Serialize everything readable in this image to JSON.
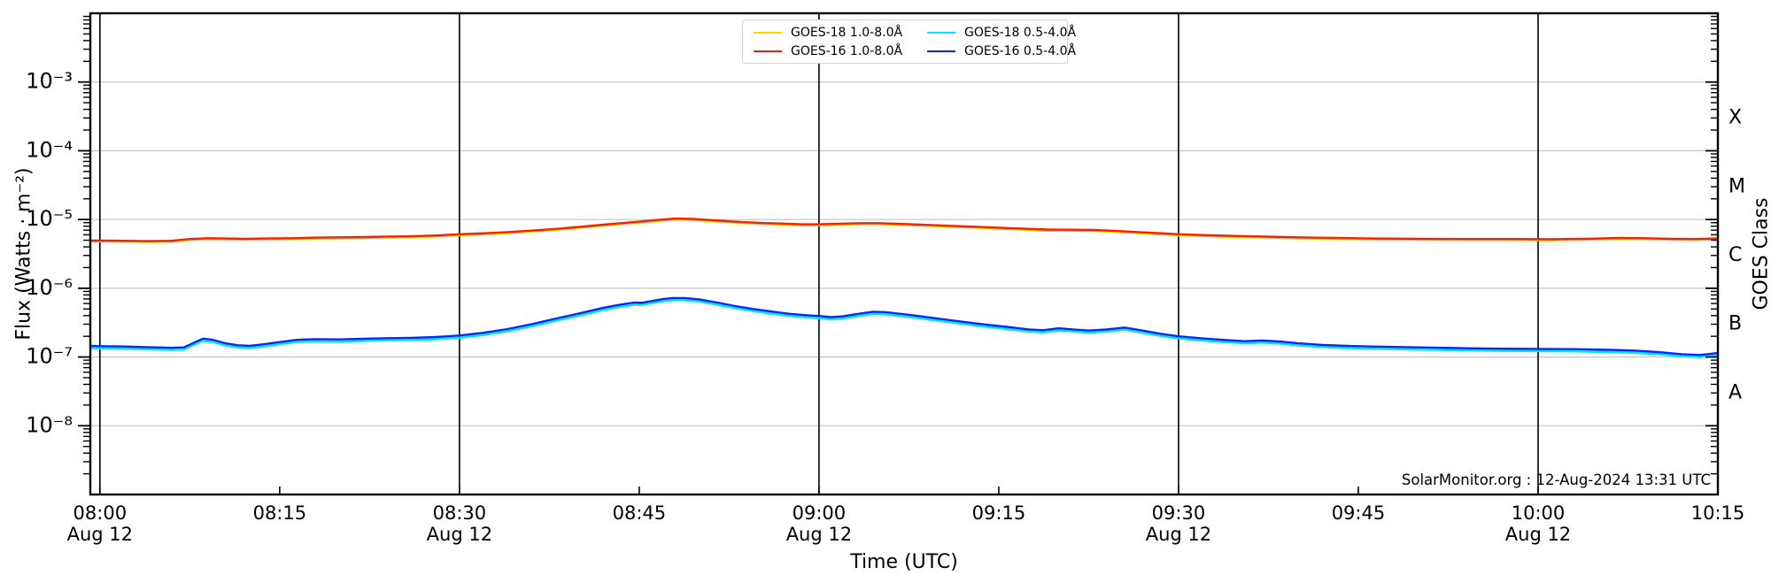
{
  "figure": {
    "attribution": "SolarMonitor.org : 12-Aug-2024 13:31 UTC",
    "background": "#ffffff"
  },
  "chart_data": {
    "type": "line",
    "title": "",
    "xlabel": "Time (UTC)",
    "ylabel": "Flux (Watts · m⁻²)",
    "y2label": "GOES Class",
    "x_unit": "minutes after 08:00 UTC, 12-Aug-2024",
    "x_range_min": [
      -0.8,
      135
    ],
    "y_scale": "log",
    "y_log_range": [
      -9,
      -2
    ],
    "grid": {
      "horizontal_exponents": [
        -3,
        -4,
        -5,
        -6,
        -7,
        -8
      ],
      "gridline_color": "#c8c8c8",
      "major_vline_color": "#000000"
    },
    "y_ticks": [
      {
        "exp": -3,
        "label": "10⁻³"
      },
      {
        "exp": -4,
        "label": "10⁻⁴"
      },
      {
        "exp": -5,
        "label": "10⁻⁵"
      },
      {
        "exp": -6,
        "label": "10⁻⁶"
      },
      {
        "exp": -7,
        "label": "10⁻⁷"
      },
      {
        "exp": -8,
        "label": "10⁻⁸"
      }
    ],
    "x_ticks": [
      {
        "t": 0,
        "label": "08:00",
        "date": "Aug 12",
        "major": true
      },
      {
        "t": 15,
        "label": "08:15"
      },
      {
        "t": 30,
        "label": "08:30",
        "date": "Aug 12",
        "major": true
      },
      {
        "t": 45,
        "label": "08:45"
      },
      {
        "t": 60,
        "label": "09:00",
        "date": "Aug 12",
        "major": true
      },
      {
        "t": 75,
        "label": "09:15"
      },
      {
        "t": 90,
        "label": "09:30",
        "date": "Aug 12",
        "major": true
      },
      {
        "t": 105,
        "label": "09:45"
      },
      {
        "t": 120,
        "label": "10:00",
        "date": "Aug 12",
        "major": true
      },
      {
        "t": 135,
        "label": "10:15"
      }
    ],
    "goes_class_ticks": [
      {
        "label": "X",
        "log_center": -3.5
      },
      {
        "label": "M",
        "log_center": -4.5
      },
      {
        "label": "C",
        "log_center": -5.5
      },
      {
        "label": "B",
        "log_center": -6.5
      },
      {
        "label": "A",
        "log_center": -7.5
      }
    ],
    "legend": {
      "position": "top-center",
      "order": [
        "GOES-18 1.0-8.0Å",
        "GOES-18 0.5-4.0Å",
        "GOES-16 1.0-8.0Å",
        "GOES-16 0.5-4.0Å"
      ]
    },
    "series": [
      {
        "name": "GOES-18 1.0-8.0Å",
        "color": "#ffd400",
        "note": "almost entirely hidden behind GOES-16 1.0-8.0Å",
        "scale_of": "GOES-16 1.0-8.0Å",
        "factor": 0.97
      },
      {
        "name": "GOES-16 1.0-8.0Å",
        "color": "#ff1c00",
        "points": [
          [
            -0.8,
            4.95e-06
          ],
          [
            0,
            4.95e-06
          ],
          [
            2,
            4.9e-06
          ],
          [
            4,
            4.85e-06
          ],
          [
            6,
            4.9e-06
          ],
          [
            7.5,
            5.2e-06
          ],
          [
            9,
            5.35e-06
          ],
          [
            10.5,
            5.3e-06
          ],
          [
            12,
            5.25e-06
          ],
          [
            14,
            5.3e-06
          ],
          [
            16,
            5.35e-06
          ],
          [
            18,
            5.45e-06
          ],
          [
            20,
            5.5e-06
          ],
          [
            22,
            5.55e-06
          ],
          [
            24,
            5.65e-06
          ],
          [
            26,
            5.7e-06
          ],
          [
            28,
            5.85e-06
          ],
          [
            30,
            6.1e-06
          ],
          [
            32,
            6.3e-06
          ],
          [
            34,
            6.55e-06
          ],
          [
            36,
            6.9e-06
          ],
          [
            38,
            7.3e-06
          ],
          [
            40,
            7.8e-06
          ],
          [
            42,
            8.4e-06
          ],
          [
            44,
            9e-06
          ],
          [
            45.5,
            9.5e-06
          ],
          [
            47,
            1e-05
          ],
          [
            48,
            1.03e-05
          ],
          [
            49.5,
            1.02e-05
          ],
          [
            51,
            9.8e-06
          ],
          [
            53,
            9.3e-06
          ],
          [
            55,
            8.95e-06
          ],
          [
            57,
            8.7e-06
          ],
          [
            58.5,
            8.5e-06
          ],
          [
            60,
            8.5e-06
          ],
          [
            62,
            8.7e-06
          ],
          [
            63.5,
            8.85e-06
          ],
          [
            65,
            8.85e-06
          ],
          [
            67,
            8.6e-06
          ],
          [
            69,
            8.35e-06
          ],
          [
            71,
            8.1e-06
          ],
          [
            73,
            7.85e-06
          ],
          [
            75,
            7.6e-06
          ],
          [
            77,
            7.35e-06
          ],
          [
            79,
            7.15e-06
          ],
          [
            81,
            7.1e-06
          ],
          [
            83,
            7.05e-06
          ],
          [
            85,
            6.8e-06
          ],
          [
            87,
            6.5e-06
          ],
          [
            89,
            6.25e-06
          ],
          [
            90,
            6.1e-06
          ],
          [
            92,
            5.95e-06
          ],
          [
            94,
            5.8e-06
          ],
          [
            96,
            5.7e-06
          ],
          [
            98,
            5.6e-06
          ],
          [
            100,
            5.5e-06
          ],
          [
            103,
            5.4e-06
          ],
          [
            106,
            5.3e-06
          ],
          [
            110,
            5.25e-06
          ],
          [
            114,
            5.2e-06
          ],
          [
            118,
            5.2e-06
          ],
          [
            121,
            5.15e-06
          ],
          [
            124,
            5.25e-06
          ],
          [
            127,
            5.4e-06
          ],
          [
            129,
            5.35e-06
          ],
          [
            131,
            5.25e-06
          ],
          [
            133,
            5.2e-06
          ],
          [
            135,
            5.3e-06
          ]
        ]
      },
      {
        "name": "GOES-18 0.5-4.0Å",
        "color": "#00e4ff",
        "note": "mostly hidden behind GOES-16 0.5-4.0Å, visible as cyan fringe below it",
        "scale_of": "GOES-16 0.5-4.0Å",
        "factor": 0.93
      },
      {
        "name": "GOES-16 0.5-4.0Å",
        "color": "#0028ff",
        "points": [
          [
            -0.8,
            1.45e-07
          ],
          [
            0,
            1.44e-07
          ],
          [
            2,
            1.42e-07
          ],
          [
            4,
            1.39e-07
          ],
          [
            6,
            1.36e-07
          ],
          [
            7,
            1.38e-07
          ],
          [
            7.8,
            1.6e-07
          ],
          [
            8.6,
            1.85e-07
          ],
          [
            9.4,
            1.78e-07
          ],
          [
            10.5,
            1.58e-07
          ],
          [
            11.5,
            1.48e-07
          ],
          [
            12.5,
            1.45e-07
          ],
          [
            13.5,
            1.52e-07
          ],
          [
            15,
            1.65e-07
          ],
          [
            16.5,
            1.78e-07
          ],
          [
            18,
            1.82e-07
          ],
          [
            20,
            1.8e-07
          ],
          [
            22,
            1.84e-07
          ],
          [
            24,
            1.88e-07
          ],
          [
            26,
            1.9e-07
          ],
          [
            28,
            1.95e-07
          ],
          [
            30,
            2.05e-07
          ],
          [
            32,
            2.25e-07
          ],
          [
            34,
            2.55e-07
          ],
          [
            36,
            3e-07
          ],
          [
            38,
            3.6e-07
          ],
          [
            40,
            4.3e-07
          ],
          [
            42,
            5.2e-07
          ],
          [
            43.5,
            5.8e-07
          ],
          [
            44.6,
            6.2e-07
          ],
          [
            45.2,
            6.15e-07
          ],
          [
            46,
            6.5e-07
          ],
          [
            47,
            6.95e-07
          ],
          [
            47.8,
            7.2e-07
          ],
          [
            48.8,
            7.2e-07
          ],
          [
            50,
            6.9e-07
          ],
          [
            51.5,
            6.2e-07
          ],
          [
            53,
            5.5e-07
          ],
          [
            54.5,
            5e-07
          ],
          [
            56,
            4.6e-07
          ],
          [
            57.5,
            4.25e-07
          ],
          [
            59,
            4.05e-07
          ],
          [
            60,
            3.95e-07
          ],
          [
            61,
            3.8e-07
          ],
          [
            62,
            3.9e-07
          ],
          [
            63.5,
            4.3e-07
          ],
          [
            64.5,
            4.55e-07
          ],
          [
            65.5,
            4.5e-07
          ],
          [
            67,
            4.2e-07
          ],
          [
            68.5,
            3.9e-07
          ],
          [
            70,
            3.6e-07
          ],
          [
            72,
            3.25e-07
          ],
          [
            74,
            2.95e-07
          ],
          [
            76,
            2.7e-07
          ],
          [
            77.5,
            2.52e-07
          ],
          [
            78.7,
            2.45e-07
          ],
          [
            80,
            2.62e-07
          ],
          [
            81.2,
            2.52e-07
          ],
          [
            82.5,
            2.42e-07
          ],
          [
            84,
            2.52e-07
          ],
          [
            85.5,
            2.68e-07
          ],
          [
            87,
            2.42e-07
          ],
          [
            88.5,
            2.18e-07
          ],
          [
            90,
            2e-07
          ],
          [
            92,
            1.86e-07
          ],
          [
            94,
            1.76e-07
          ],
          [
            95.5,
            1.7e-07
          ],
          [
            97,
            1.74e-07
          ],
          [
            98.5,
            1.68e-07
          ],
          [
            100,
            1.58e-07
          ],
          [
            102,
            1.5e-07
          ],
          [
            104,
            1.45e-07
          ],
          [
            106,
            1.42e-07
          ],
          [
            108,
            1.4e-07
          ],
          [
            111,
            1.37e-07
          ],
          [
            114,
            1.34e-07
          ],
          [
            117,
            1.32e-07
          ],
          [
            120,
            1.31e-07
          ],
          [
            123,
            1.3e-07
          ],
          [
            126,
            1.27e-07
          ],
          [
            128,
            1.24e-07
          ],
          [
            130,
            1.18e-07
          ],
          [
            132,
            1.1e-07
          ],
          [
            133.5,
            1.07e-07
          ],
          [
            135,
            1.14e-07
          ]
        ]
      }
    ]
  }
}
